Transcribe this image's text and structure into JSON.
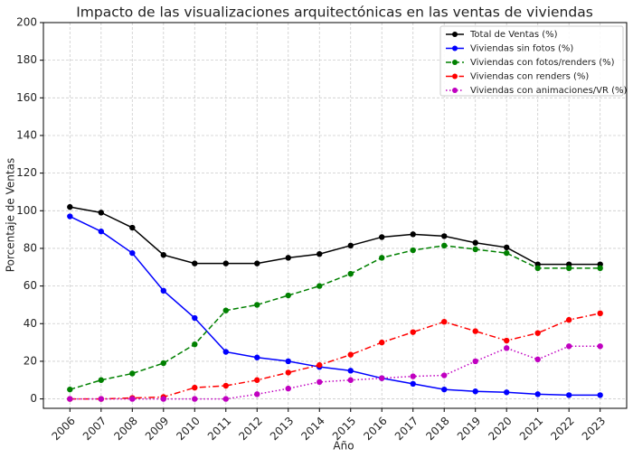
{
  "chart_data": {
    "type": "line",
    "title": "Impacto de las visualizaciones arquitectónicas en las ventas de viviendas",
    "x_label": "Año",
    "y_label": "Porcentaje de Ventas",
    "x": [
      2006,
      2007,
      2008,
      2009,
      2010,
      2011,
      2012,
      2013,
      2014,
      2015,
      2016,
      2017,
      2018,
      2019,
      2020,
      2021,
      2022,
      2023
    ],
    "series": [
      {
        "name": "Total de Ventas (%)",
        "color": "#000000",
        "linestyle": "solid",
        "values": [
          102,
          99,
          91,
          76.5,
          72,
          72,
          72,
          75,
          77,
          81.5,
          86,
          87.5,
          86.5,
          83,
          80.5,
          71.5,
          71.5,
          71.5
        ]
      },
      {
        "name": "Viviendas sin fotos (%)",
        "color": "#0000ff",
        "linestyle": "solid",
        "values": [
          97,
          89,
          77.5,
          57.5,
          43,
          25,
          22,
          20,
          17,
          15,
          11,
          8,
          5,
          4,
          3.5,
          2.5,
          2,
          2
        ]
      },
      {
        "name": "Viviendas con fotos/renders (%)",
        "color": "#008000",
        "linestyle": "dashed",
        "values": [
          5,
          10,
          13.5,
          19,
          29,
          47,
          50,
          55,
          60,
          66.5,
          75,
          79,
          81.5,
          79.5,
          77.5,
          69.5,
          69.5,
          69.5
        ]
      },
      {
        "name": "Viviendas con renders (%)",
        "color": "#ff0000",
        "linestyle": "dashdot",
        "values": [
          0,
          0,
          0.5,
          1,
          6,
          7,
          10,
          14,
          18,
          23.5,
          30,
          35.5,
          41,
          36,
          31,
          35,
          42,
          45.5
        ]
      },
      {
        "name": "Viviendas con animaciones/VR (%)",
        "color": "#c000c0",
        "linestyle": "dotted",
        "values": [
          0,
          0,
          0,
          0,
          0,
          0,
          2.5,
          5.5,
          9,
          10,
          11,
          12,
          12.5,
          20,
          27,
          21,
          28,
          28
        ]
      }
    ],
    "xlim": [
      2005.15,
      2023.85
    ],
    "ylim": [
      -5,
      200
    ],
    "xticks": [
      2006,
      2007,
      2008,
      2009,
      2010,
      2011,
      2012,
      2013,
      2014,
      2015,
      2016,
      2017,
      2018,
      2019,
      2020,
      2021,
      2022,
      2023
    ],
    "yticks": [
      0,
      20,
      40,
      60,
      80,
      100,
      120,
      140,
      160,
      180,
      200
    ],
    "grid": true,
    "legend": "upper-right"
  }
}
